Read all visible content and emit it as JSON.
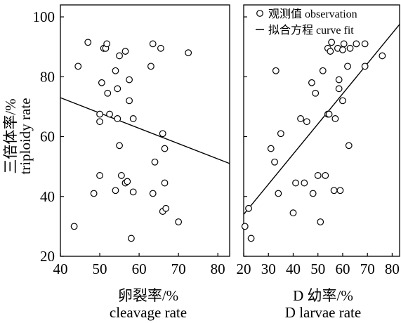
{
  "y_axis_label_cn": "三倍体率/%",
  "y_axis_label_en": "triploidy rate",
  "legend": {
    "observation": "观测值 observation",
    "fit": "拟合方程 curve fit"
  },
  "chart_data": [
    {
      "type": "scatter",
      "xlabel_cn": "卵裂率/%",
      "xlabel_en": "cleavage rate",
      "ylabel": "三倍体率/% triploidy rate",
      "xlim": [
        40,
        83
      ],
      "ylim": [
        20,
        104
      ],
      "xticks": [
        40,
        50,
        60,
        70,
        80
      ],
      "yticks": [
        20,
        40,
        60,
        80,
        100
      ],
      "points": [
        [
          43.5,
          30
        ],
        [
          44.5,
          83.5
        ],
        [
          47,
          91.5
        ],
        [
          48.5,
          41
        ],
        [
          50,
          47
        ],
        [
          50,
          67.5
        ],
        [
          50,
          65
        ],
        [
          50.5,
          78
        ],
        [
          51,
          89.5
        ],
        [
          51.5,
          89.5
        ],
        [
          51.8,
          91
        ],
        [
          52,
          74.5
        ],
        [
          52.5,
          67.5
        ],
        [
          54,
          42
        ],
        [
          54,
          82
        ],
        [
          54.5,
          76
        ],
        [
          54.5,
          66
        ],
        [
          55,
          87
        ],
        [
          55,
          57
        ],
        [
          55.5,
          47
        ],
        [
          56.5,
          88.5
        ],
        [
          56.5,
          44.5
        ],
        [
          57,
          45
        ],
        [
          57.5,
          72
        ],
        [
          57.5,
          79
        ],
        [
          58,
          26
        ],
        [
          58.5,
          41.5
        ],
        [
          58.5,
          66
        ],
        [
          63,
          83.5
        ],
        [
          63.5,
          91
        ],
        [
          63.5,
          41
        ],
        [
          64,
          51.5
        ],
        [
          65.5,
          89.5
        ],
        [
          66,
          35
        ],
        [
          66,
          61
        ],
        [
          66.5,
          56
        ],
        [
          66.5,
          44.5
        ],
        [
          66.8,
          36
        ],
        [
          70,
          31.5
        ],
        [
          72.5,
          88
        ]
      ],
      "fit": {
        "x": [
          40,
          83
        ],
        "y": [
          73,
          51
        ]
      }
    },
    {
      "type": "scatter",
      "xlabel_cn": "D 幼率/%",
      "xlabel_en": "D larvae rate",
      "ylabel": "三倍体率/% triploidy rate",
      "xlim": [
        20,
        83
      ],
      "ylim": [
        20,
        104
      ],
      "xticks": [
        20,
        30,
        40,
        50,
        60,
        70,
        80
      ],
      "yticks": [
        20,
        40,
        60,
        80,
        100
      ],
      "points": [
        [
          20.5,
          30
        ],
        [
          22,
          36
        ],
        [
          23,
          26
        ],
        [
          31,
          56
        ],
        [
          32.5,
          51.5
        ],
        [
          33,
          82
        ],
        [
          34,
          41
        ],
        [
          35,
          61
        ],
        [
          40,
          34.5
        ],
        [
          41,
          44.5
        ],
        [
          43,
          66
        ],
        [
          44.5,
          44.5
        ],
        [
          45.5,
          65
        ],
        [
          47.5,
          78
        ],
        [
          48,
          41
        ],
        [
          49,
          74.5
        ],
        [
          50,
          47
        ],
        [
          51,
          31.5
        ],
        [
          52,
          82
        ],
        [
          53,
          47
        ],
        [
          54,
          89.5
        ],
        [
          54,
          67.5
        ],
        [
          54.5,
          67.5
        ],
        [
          55,
          88.5
        ],
        [
          55.5,
          91.5
        ],
        [
          56.5,
          42
        ],
        [
          57,
          66
        ],
        [
          58,
          89.5
        ],
        [
          58.5,
          76
        ],
        [
          58.5,
          79
        ],
        [
          59,
          42
        ],
        [
          60,
          72
        ],
        [
          60,
          89
        ],
        [
          60.5,
          91
        ],
        [
          62,
          83.5
        ],
        [
          62.5,
          57
        ],
        [
          63,
          89.5
        ],
        [
          65.5,
          91
        ],
        [
          69,
          83.5
        ],
        [
          69,
          91
        ],
        [
          76,
          87
        ]
      ],
      "fit": {
        "x": [
          20,
          83
        ],
        "y": [
          34,
          97.5
        ]
      }
    }
  ]
}
